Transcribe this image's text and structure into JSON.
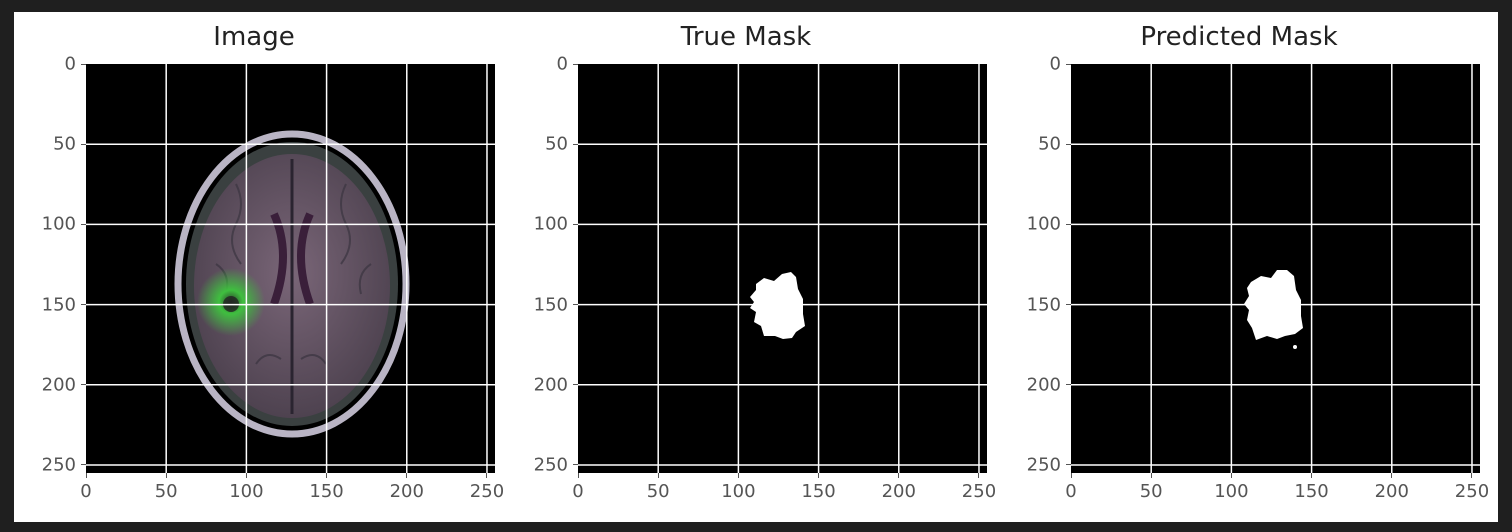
{
  "figure": {
    "panels": [
      {
        "id": "image",
        "title": "Image"
      },
      {
        "id": "true-mask",
        "title": "True Mask"
      },
      {
        "id": "predicted-mask",
        "title": "Predicted Mask"
      }
    ],
    "x_ticks": [
      "0",
      "50",
      "100",
      "150",
      "200",
      "250"
    ],
    "y_ticks": [
      "0",
      "50",
      "100",
      "150",
      "200",
      "250"
    ],
    "axis_range": [
      0,
      255
    ],
    "grid": true
  },
  "colors": {
    "background": "#000000",
    "grid": "#ffffff",
    "mask": "#ffffff",
    "tissue": "#6f5a6c",
    "skull_ring": "#b9b4c4",
    "lesion": "#3fbf3f",
    "tick_text": "#555555"
  },
  "icons": [
    "brain-mri-slice",
    "tumor-mask"
  ]
}
